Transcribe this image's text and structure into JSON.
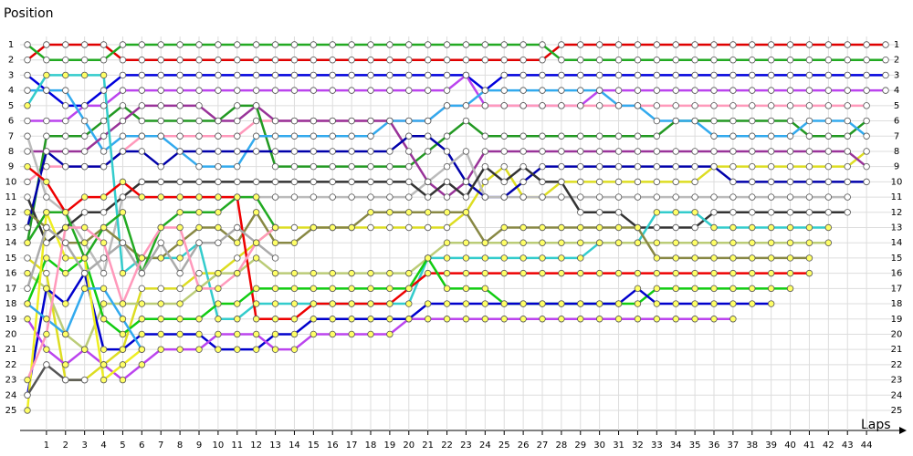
{
  "chart_data": {
    "type": "line",
    "y_title": "Position",
    "x_title": "Laps",
    "xlim": [
      0,
      45
    ],
    "xticks": [
      1,
      2,
      3,
      4,
      5,
      6,
      7,
      8,
      9,
      10,
      11,
      12,
      13,
      14,
      15,
      16,
      17,
      18,
      19,
      20,
      21,
      22,
      23,
      24,
      25,
      26,
      27,
      28,
      29,
      30,
      31,
      32,
      33,
      34,
      35,
      36,
      37,
      38,
      39,
      40,
      41,
      42,
      43,
      44
    ],
    "ylim": [
      1,
      25
    ],
    "y_inverted": true,
    "yticks": [
      1,
      2,
      3,
      4,
      5,
      6,
      7,
      8,
      9,
      10,
      11,
      12,
      13,
      14,
      15,
      16,
      17,
      18,
      19,
      20,
      21,
      22,
      23,
      24,
      25
    ],
    "grid": true,
    "series": [
      {
        "color": "#e00000",
        "marker_color": "#ffffff",
        "values": [
          2,
          1,
          1,
          1,
          1,
          2,
          2,
          2,
          2,
          2,
          2,
          2,
          2,
          2,
          2,
          2,
          2,
          2,
          2,
          2,
          2,
          2,
          2,
          2,
          2,
          2,
          2,
          2,
          1,
          1,
          1,
          1,
          1,
          1,
          1,
          1,
          1,
          1,
          1,
          1,
          1,
          1,
          1,
          1,
          1,
          1
        ]
      },
      {
        "color": "#22aa22",
        "marker_color": "#ffffff",
        "values": [
          1,
          2,
          2,
          2,
          2,
          1,
          1,
          1,
          1,
          1,
          1,
          1,
          1,
          1,
          1,
          1,
          1,
          1,
          1,
          1,
          1,
          1,
          1,
          1,
          1,
          1,
          1,
          1,
          2,
          2,
          2,
          2,
          2,
          2,
          2,
          2,
          2,
          2,
          2,
          2,
          2,
          2,
          2,
          2,
          2,
          2
        ]
      },
      {
        "color": "#0000dd",
        "marker_color": "#ffffff",
        "values": [
          3,
          4,
          5,
          5,
          4,
          3,
          3,
          3,
          3,
          3,
          3,
          3,
          3,
          3,
          3,
          3,
          3,
          3,
          3,
          3,
          3,
          3,
          3,
          3,
          4,
          3,
          3,
          3,
          3,
          3,
          3,
          3,
          3,
          3,
          3,
          3,
          3,
          3,
          3,
          3,
          3,
          3,
          3,
          3,
          3,
          3
        ]
      },
      {
        "color": "#bb44ee",
        "marker_color": "#ffffff",
        "values": [
          6,
          6,
          6,
          5,
          5,
          4,
          4,
          4,
          4,
          4,
          4,
          4,
          4,
          4,
          4,
          4,
          4,
          4,
          4,
          4,
          4,
          4,
          4,
          3,
          5,
          5,
          5,
          5,
          5,
          5,
          4,
          4,
          4,
          4,
          4,
          4,
          4,
          4,
          4,
          4,
          4,
          4,
          4,
          4,
          4,
          4
        ]
      },
      {
        "color": "#ff99bb",
        "marker_color": "#ffffff",
        "values": [
          10,
          9,
          9,
          9,
          9,
          8,
          7,
          7,
          7,
          7,
          7,
          7,
          6,
          6,
          6,
          6,
          6,
          6,
          6,
          6,
          6,
          6,
          5,
          5,
          5,
          5,
          5,
          5,
          5,
          5,
          5,
          5,
          5,
          5,
          5,
          5,
          5,
          5,
          5,
          5,
          5,
          5,
          5,
          5,
          5,
          null
        ]
      },
      {
        "color": "#229922",
        "marker_color": "#ffffff",
        "values": [
          14,
          7,
          7,
          7,
          6,
          5,
          6,
          6,
          6,
          6,
          6,
          5,
          5,
          9,
          9,
          9,
          9,
          9,
          9,
          9,
          9,
          8,
          7,
          6,
          7,
          7,
          7,
          7,
          7,
          7,
          7,
          7,
          7,
          7,
          6,
          6,
          6,
          6,
          6,
          6,
          6,
          7,
          7,
          7,
          6,
          null
        ]
      },
      {
        "color": "#33aaee",
        "marker_color": "#ffffff",
        "values": [
          4,
          4,
          4,
          6,
          8,
          7,
          7,
          7,
          8,
          9,
          9,
          9,
          7,
          7,
          7,
          7,
          7,
          7,
          7,
          6,
          6,
          6,
          5,
          5,
          4,
          4,
          4,
          4,
          4,
          4,
          4,
          5,
          5,
          6,
          6,
          6,
          7,
          7,
          7,
          7,
          7,
          6,
          6,
          6,
          7,
          null
        ]
      },
      {
        "color": "#dddd22",
        "marker_color": "#ffffff",
        "values": [
          15,
          16,
          23,
          23,
          22,
          21,
          17,
          17,
          17,
          16,
          16,
          15,
          14,
          13,
          13,
          13,
          13,
          13,
          13,
          13,
          13,
          13,
          13,
          12,
          10,
          9,
          11,
          11,
          10,
          10,
          10,
          10,
          10,
          10,
          10,
          10,
          9,
          9,
          9,
          9,
          9,
          9,
          9,
          9,
          8,
          null
        ]
      },
      {
        "color": "#993399",
        "marker_color": "#ffffff",
        "values": [
          8,
          8,
          8,
          8,
          7,
          6,
          5,
          5,
          5,
          5,
          6,
          6,
          5,
          6,
          6,
          6,
          6,
          6,
          6,
          6,
          8,
          10,
          11,
          10,
          8,
          8,
          8,
          8,
          8,
          8,
          8,
          8,
          8,
          8,
          8,
          8,
          8,
          8,
          8,
          8,
          8,
          8,
          8,
          8,
          9,
          null
        ]
      },
      {
        "color": "#0000aa",
        "marker_color": "#ffffff",
        "values": [
          13,
          8,
          9,
          9,
          9,
          8,
          8,
          9,
          8,
          8,
          8,
          8,
          8,
          8,
          8,
          8,
          8,
          8,
          8,
          8,
          7,
          7,
          8,
          10,
          11,
          11,
          10,
          9,
          9,
          9,
          9,
          9,
          9,
          9,
          9,
          9,
          9,
          10,
          10,
          10,
          10,
          10,
          10,
          10,
          10,
          null
        ]
      },
      {
        "color": "#bbbbbb",
        "marker_color": "#ffffff",
        "values": [
          7,
          11,
          12,
          14,
          16,
          11,
          11,
          11,
          11,
          11,
          11,
          11,
          11,
          11,
          11,
          11,
          11,
          11,
          11,
          11,
          11,
          10,
          9,
          8,
          11,
          11,
          11,
          11,
          11,
          11,
          11,
          11,
          11,
          11,
          11,
          11,
          11,
          11,
          11,
          11,
          11,
          11,
          11,
          11,
          null,
          null
        ]
      },
      {
        "color": "#333333",
        "marker_color": "#ffffff",
        "values": [
          11,
          14,
          13,
          12,
          12,
          11,
          10,
          10,
          10,
          10,
          10,
          10,
          10,
          10,
          10,
          10,
          10,
          10,
          10,
          10,
          10,
          11,
          10,
          11,
          9,
          10,
          9,
          10,
          10,
          12,
          12,
          12,
          13,
          13,
          13,
          13,
          12,
          12,
          12,
          12,
          12,
          12,
          12,
          12,
          null,
          null
        ]
      },
      {
        "color": "#33cccc",
        "marker_color": "#ffff66",
        "values": [
          5,
          3,
          3,
          3,
          3,
          16,
          15,
          15,
          15,
          14,
          19,
          19,
          18,
          18,
          18,
          18,
          18,
          18,
          18,
          18,
          18,
          15,
          15,
          15,
          15,
          15,
          15,
          15,
          15,
          15,
          14,
          14,
          14,
          12,
          12,
          12,
          13,
          13,
          13,
          13,
          13,
          13,
          13,
          null,
          null,
          null
        ]
      },
      {
        "color": "#bbcc77",
        "marker_color": "#ffff66",
        "values": [
          16,
          17,
          20,
          21,
          18,
          18,
          18,
          18,
          18,
          17,
          16,
          16,
          15,
          16,
          16,
          16,
          16,
          16,
          16,
          16,
          16,
          15,
          14,
          14,
          14,
          14,
          14,
          14,
          14,
          14,
          14,
          14,
          14,
          14,
          14,
          14,
          14,
          14,
          14,
          14,
          14,
          14,
          14,
          null,
          null,
          null
        ]
      },
      {
        "color": "#888844",
        "marker_color": "#ffff66",
        "values": [
          12,
          13,
          14,
          14,
          13,
          14,
          15,
          15,
          14,
          13,
          13,
          14,
          12,
          14,
          14,
          13,
          13,
          13,
          12,
          12,
          12,
          12,
          12,
          12,
          14,
          13,
          13,
          13,
          13,
          13,
          13,
          13,
          13,
          15,
          15,
          15,
          15,
          15,
          15,
          15,
          15,
          15,
          null,
          null,
          null,
          null
        ]
      },
      {
        "color": "#ee0000",
        "marker_color": "#ffff66",
        "values": [
          9,
          10,
          12,
          11,
          11,
          10,
          11,
          11,
          11,
          11,
          11,
          11,
          19,
          19,
          19,
          18,
          18,
          18,
          18,
          18,
          17,
          16,
          16,
          16,
          16,
          16,
          16,
          16,
          16,
          16,
          16,
          16,
          16,
          16,
          16,
          16,
          16,
          16,
          16,
          16,
          16,
          16,
          null,
          null,
          null,
          null
        ]
      },
      {
        "color": "#11cc11",
        "marker_color": "#ffff66",
        "values": [
          18,
          15,
          16,
          15,
          19,
          20,
          19,
          19,
          19,
          19,
          18,
          18,
          17,
          17,
          17,
          17,
          17,
          17,
          17,
          17,
          17,
          15,
          17,
          17,
          17,
          18,
          18,
          18,
          18,
          18,
          18,
          18,
          18,
          17,
          17,
          17,
          17,
          17,
          17,
          17,
          17,
          null,
          null,
          null,
          null,
          null
        ]
      },
      {
        "color": "#0000cc",
        "marker_color": "#ffff66",
        "values": [
          24,
          17,
          18,
          16,
          21,
          21,
          20,
          20,
          20,
          20,
          21,
          21,
          21,
          20,
          20,
          19,
          19,
          19,
          19,
          19,
          19,
          18,
          18,
          18,
          18,
          18,
          18,
          18,
          18,
          18,
          18,
          18,
          17,
          18,
          18,
          18,
          18,
          18,
          18,
          18,
          null,
          null,
          null,
          null,
          null,
          null
        ]
      },
      {
        "color": "#bb44ee",
        "marker_color": "#ffff66",
        "values": [
          19,
          21,
          22,
          21,
          22,
          23,
          22,
          21,
          21,
          21,
          20,
          20,
          20,
          21,
          21,
          20,
          20,
          20,
          20,
          20,
          19,
          19,
          19,
          19,
          19,
          19,
          19,
          19,
          19,
          19,
          19,
          19,
          19,
          19,
          19,
          19,
          19,
          19,
          null,
          null,
          null,
          null,
          null,
          null,
          null,
          null
        ]
      },
      {
        "color": "#22aa22",
        "marker_color": "#ffff66",
        "values": [
          14,
          12,
          12,
          15,
          13,
          12,
          16,
          13,
          12,
          12,
          12,
          11,
          11,
          13,
          null,
          null,
          null,
          null,
          null,
          null,
          null,
          null,
          null,
          null,
          null,
          null,
          null,
          null,
          null,
          null,
          null,
          null,
          null,
          null,
          null,
          null,
          null,
          null,
          null,
          null,
          null,
          null,
          null,
          null,
          null,
          null
        ]
      },
      {
        "color": "#eeee22",
        "marker_color": "#ffff66",
        "values": [
          25,
          12,
          15,
          15,
          23,
          22,
          21,
          null,
          null,
          null,
          null,
          null,
          null,
          null,
          null,
          null,
          null,
          null,
          null,
          null,
          null,
          null,
          null,
          null,
          null,
          null,
          null,
          null,
          null,
          null,
          null,
          null,
          null,
          null,
          null,
          null,
          null,
          null,
          null,
          null,
          null,
          null,
          null,
          null,
          null,
          null
        ]
      },
      {
        "color": "#33aaee",
        "marker_color": "#ffff66",
        "values": [
          18,
          19,
          20,
          17,
          17,
          19,
          21,
          null,
          null,
          null,
          null,
          null,
          null,
          null,
          null,
          null,
          null,
          null,
          null,
          null,
          null,
          null,
          null,
          null,
          null,
          null,
          null,
          null,
          null,
          null,
          null,
          null,
          null,
          null,
          null,
          null,
          null,
          null,
          null,
          null,
          null,
          null,
          null,
          null,
          null,
          null
        ]
      },
      {
        "color": "#aaaaaa",
        "marker_color": "#ffffff",
        "values": [
          17,
          13,
          14,
          16,
          15,
          14,
          16,
          14,
          16,
          14,
          14,
          13,
          14,
          15,
          null,
          null,
          null,
          null,
          null,
          null,
          null,
          null,
          null,
          null,
          null,
          null,
          null,
          null,
          null,
          null,
          null,
          null,
          null,
          null,
          null,
          null,
          null,
          null,
          null,
          null,
          null,
          null,
          null,
          null,
          null,
          null
        ]
      },
      {
        "color": "#ff99bb",
        "marker_color": "#ffff66",
        "values": [
          23,
          20,
          13,
          13,
          14,
          18,
          15,
          13,
          13,
          17,
          17,
          16,
          14,
          13,
          null,
          null,
          null,
          null,
          null,
          null,
          null,
          null,
          null,
          null,
          null,
          null,
          null,
          null,
          null,
          null,
          null,
          null,
          null,
          null,
          null,
          null,
          null,
          null,
          null,
          null,
          null,
          null,
          null,
          null,
          null,
          null
        ]
      },
      {
        "color": "#555555",
        "marker_color": "#ffffff",
        "values": [
          24,
          22,
          23,
          23,
          null,
          null,
          null,
          null,
          null,
          null,
          null,
          null,
          null,
          null,
          null,
          null,
          null,
          null,
          null,
          null,
          null,
          null,
          null,
          null,
          null,
          null,
          null,
          null,
          null,
          null,
          null,
          null,
          null,
          null,
          null,
          null,
          null,
          null,
          null,
          null,
          null,
          null,
          null,
          null,
          null,
          null
        ]
      }
    ]
  }
}
